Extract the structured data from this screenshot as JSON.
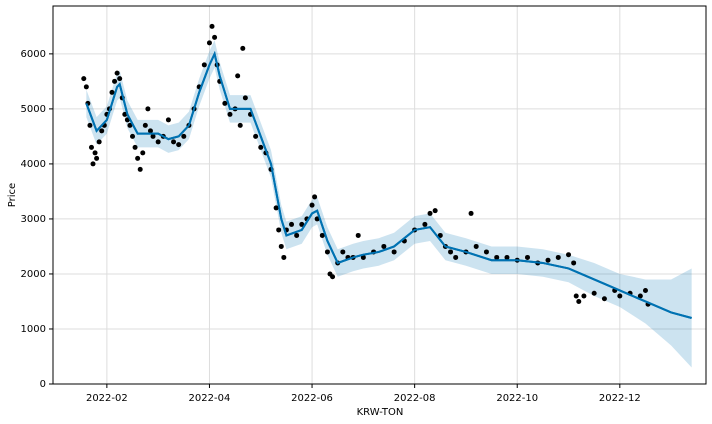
{
  "chart_data": {
    "type": "forecast",
    "xlabel": "KRW-TON",
    "ylabel": "Price",
    "xlim": [
      0.95,
      13.68
    ],
    "ylim": [
      0,
      6870
    ],
    "grid": true,
    "xticks": [
      {
        "value": 2,
        "label": "2022-02"
      },
      {
        "value": 4,
        "label": "2022-04"
      },
      {
        "value": 6,
        "label": "2022-06"
      },
      {
        "value": 8,
        "label": "2022-08"
      },
      {
        "value": 10,
        "label": "2022-10"
      },
      {
        "value": 12,
        "label": "2022-12"
      }
    ],
    "yticks": [
      0,
      1000,
      2000,
      3000,
      4000,
      5000,
      6000
    ],
    "series": [
      {
        "type": "line",
        "color": "#0072B2",
        "x": [
          1.6,
          1.8,
          2.0,
          2.2,
          2.25,
          2.4,
          2.6,
          2.8,
          3.0,
          3.2,
          3.4,
          3.6,
          3.8,
          4.0,
          4.1,
          4.2,
          4.4,
          4.6,
          4.8,
          5.0,
          5.2,
          5.4,
          5.5,
          5.8,
          6.0,
          6.1,
          6.3,
          6.5,
          6.8,
          7.0,
          7.3,
          7.6,
          8.0,
          8.3,
          8.6,
          9.0,
          9.5,
          10.0,
          10.5,
          11.0,
          11.5,
          12.0,
          12.5,
          13.0,
          13.4
        ],
        "values": [
          5100,
          4600,
          4800,
          5400,
          5450,
          4900,
          4550,
          4550,
          4550,
          4450,
          4500,
          4700,
          5300,
          5800,
          6000,
          5600,
          5000,
          5000,
          5000,
          4500,
          4000,
          3000,
          2700,
          2800,
          3100,
          3150,
          2600,
          2200,
          2300,
          2350,
          2400,
          2500,
          2800,
          2850,
          2500,
          2400,
          2250,
          2250,
          2200,
          2100,
          1900,
          1700,
          1500,
          1300,
          1200
        ],
        "lower": [
          4850,
          4350,
          4550,
          5150,
          5200,
          4650,
          4300,
          4300,
          4300,
          4200,
          4250,
          4450,
          5050,
          5550,
          5750,
          5350,
          4750,
          4750,
          4750,
          4250,
          3750,
          2750,
          2450,
          2550,
          2850,
          2900,
          2350,
          1950,
          2050,
          2100,
          2150,
          2250,
          2550,
          2600,
          2250,
          2150,
          2000,
          2000,
          1950,
          1850,
          1600,
          1400,
          1100,
          700,
          300
        ],
        "upper": [
          5350,
          4850,
          5050,
          5650,
          5700,
          5150,
          4800,
          4800,
          4800,
          4700,
          4750,
          4950,
          5550,
          6050,
          6250,
          5850,
          5250,
          5250,
          5250,
          4750,
          4250,
          3250,
          2950,
          3050,
          3350,
          3400,
          2850,
          2450,
          2550,
          2600,
          2650,
          2750,
          3050,
          3100,
          2750,
          2650,
          2500,
          2500,
          2450,
          2350,
          2200,
          2000,
          1900,
          1900,
          2100
        ]
      },
      {
        "type": "scatter",
        "color": "#000000",
        "x": [
          1.55,
          1.6,
          1.63,
          1.67,
          1.7,
          1.73,
          1.77,
          1.8,
          1.85,
          1.9,
          1.95,
          2.0,
          2.05,
          2.1,
          2.15,
          2.2,
          2.25,
          2.3,
          2.35,
          2.4,
          2.45,
          2.5,
          2.55,
          2.6,
          2.65,
          2.7,
          2.75,
          2.8,
          2.85,
          2.9,
          3.0,
          3.1,
          3.2,
          3.3,
          3.4,
          3.5,
          3.6,
          3.7,
          3.8,
          3.9,
          4.0,
          4.05,
          4.1,
          4.15,
          4.2,
          4.3,
          4.4,
          4.5,
          4.55,
          4.6,
          4.65,
          4.7,
          4.8,
          4.9,
          5.0,
          5.1,
          5.2,
          5.3,
          5.35,
          5.4,
          5.45,
          5.5,
          5.6,
          5.7,
          5.8,
          5.9,
          6.0,
          6.05,
          6.1,
          6.2,
          6.3,
          6.35,
          6.4,
          6.5,
          6.6,
          6.7,
          6.8,
          6.9,
          7.0,
          7.2,
          7.4,
          7.6,
          7.8,
          8.0,
          8.2,
          8.3,
          8.4,
          8.5,
          8.6,
          8.7,
          8.8,
          9.0,
          9.1,
          9.2,
          9.4,
          9.6,
          9.8,
          10.0,
          10.2,
          10.4,
          10.6,
          10.8,
          11.0,
          11.1,
          11.15,
          11.2,
          11.3,
          11.5,
          11.7,
          11.9,
          12.0,
          12.2,
          12.4,
          12.5,
          12.55
        ],
        "values": [
          5550,
          5400,
          5100,
          4700,
          4300,
          4000,
          4200,
          4100,
          4400,
          4600,
          4700,
          4900,
          5000,
          5300,
          5500,
          5650,
          5550,
          5200,
          4900,
          4800,
          4700,
          4500,
          4300,
          4100,
          3900,
          4200,
          4700,
          5000,
          4600,
          4500,
          4400,
          4500,
          4800,
          4400,
          4350,
          4500,
          4700,
          5000,
          5400,
          5800,
          6200,
          6500,
          6300,
          5800,
          5500,
          5100,
          4900,
          5000,
          5600,
          4700,
          6100,
          5200,
          4900,
          4500,
          4300,
          4200,
          3900,
          3200,
          2800,
          2500,
          2300,
          2800,
          2900,
          2700,
          2900,
          3000,
          3250,
          3400,
          3000,
          2700,
          2400,
          2000,
          1950,
          2200,
          2400,
          2300,
          2300,
          2700,
          2300,
          2400,
          2500,
          2400,
          2600,
          2800,
          2900,
          3100,
          3150,
          2700,
          2500,
          2400,
          2300,
          2400,
          3100,
          2500,
          2400,
          2300,
          2300,
          2250,
          2300,
          2200,
          2250,
          2300,
          2350,
          2200,
          1600,
          1500,
          1600,
          1650,
          1550,
          1700,
          1600,
          1650,
          1600,
          1700,
          1450
        ]
      }
    ]
  }
}
